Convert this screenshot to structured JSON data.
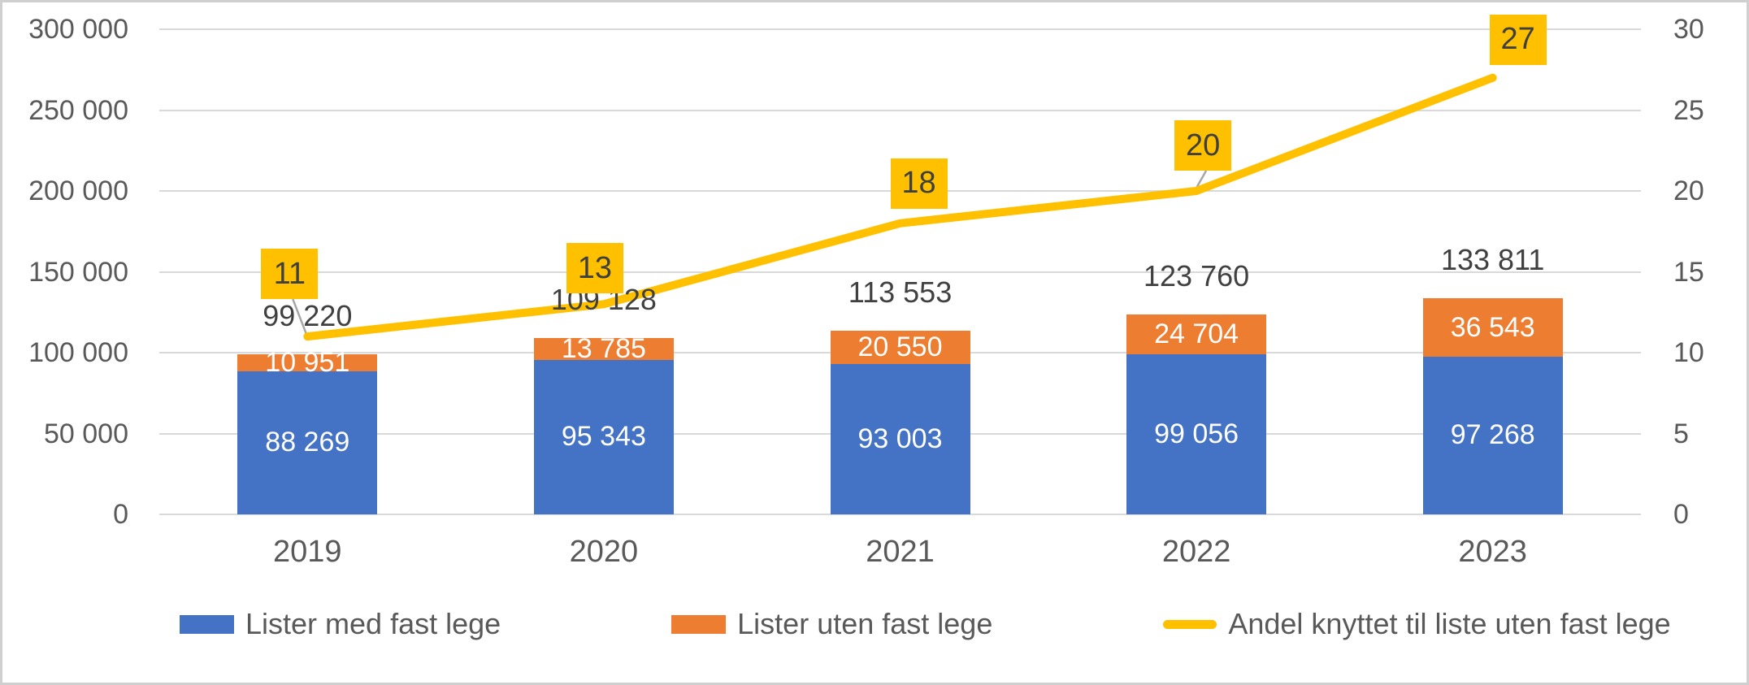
{
  "chart_data": {
    "type": "combo",
    "categories": [
      "2019",
      "2020",
      "2021",
      "2022",
      "2023"
    ],
    "series": [
      {
        "name": "Lister med fast lege",
        "type": "bar",
        "stacked": true,
        "color": "#4472C4",
        "values": [
          88269,
          95343,
          93003,
          99056,
          97268
        ],
        "value_labels": [
          "88 269",
          "95 343",
          "93 003",
          "99 056",
          "97 268"
        ]
      },
      {
        "name": "Lister uten fast lege",
        "type": "bar",
        "stacked": true,
        "color": "#ED7D31",
        "values": [
          10951,
          13785,
          20550,
          24704,
          36543
        ],
        "value_labels": [
          "10 951",
          "13 785",
          "20 550",
          "24 704",
          "36 543"
        ]
      },
      {
        "name": "Andel knyttet til liste uten fast lege",
        "type": "line",
        "axis": "right",
        "color": "#FFC000",
        "values": [
          11,
          13,
          18,
          20,
          27
        ],
        "value_labels": [
          "11",
          "13",
          "18",
          "20",
          "27"
        ]
      }
    ],
    "stack_totals": [
      99220,
      109128,
      113553,
      123760,
      133811
    ],
    "stack_total_labels": [
      "99 220",
      "109 128",
      "113 553",
      "123 760",
      "133 811"
    ],
    "left_axis": {
      "min": 0,
      "max": 300000,
      "step": 50000,
      "tick_labels": [
        "0",
        "50 000",
        "100 000",
        "150 000",
        "200 000",
        "250 000",
        "300 000"
      ]
    },
    "right_axis": {
      "min": 0,
      "max": 30,
      "step": 5,
      "tick_labels": [
        "0",
        "5",
        "10",
        "15",
        "20",
        "25",
        "30"
      ]
    },
    "gridlines": true,
    "legend_position": "bottom",
    "colors": {
      "grid": "#D9D9D9",
      "axis_text": "#595959",
      "total_label_text": "#404040",
      "bar_label_text": "#FFFFFF",
      "line_label_bg": "#FFC000",
      "line_label_text": "#3F3F3F",
      "leader_line": "#A6A6A6"
    }
  }
}
